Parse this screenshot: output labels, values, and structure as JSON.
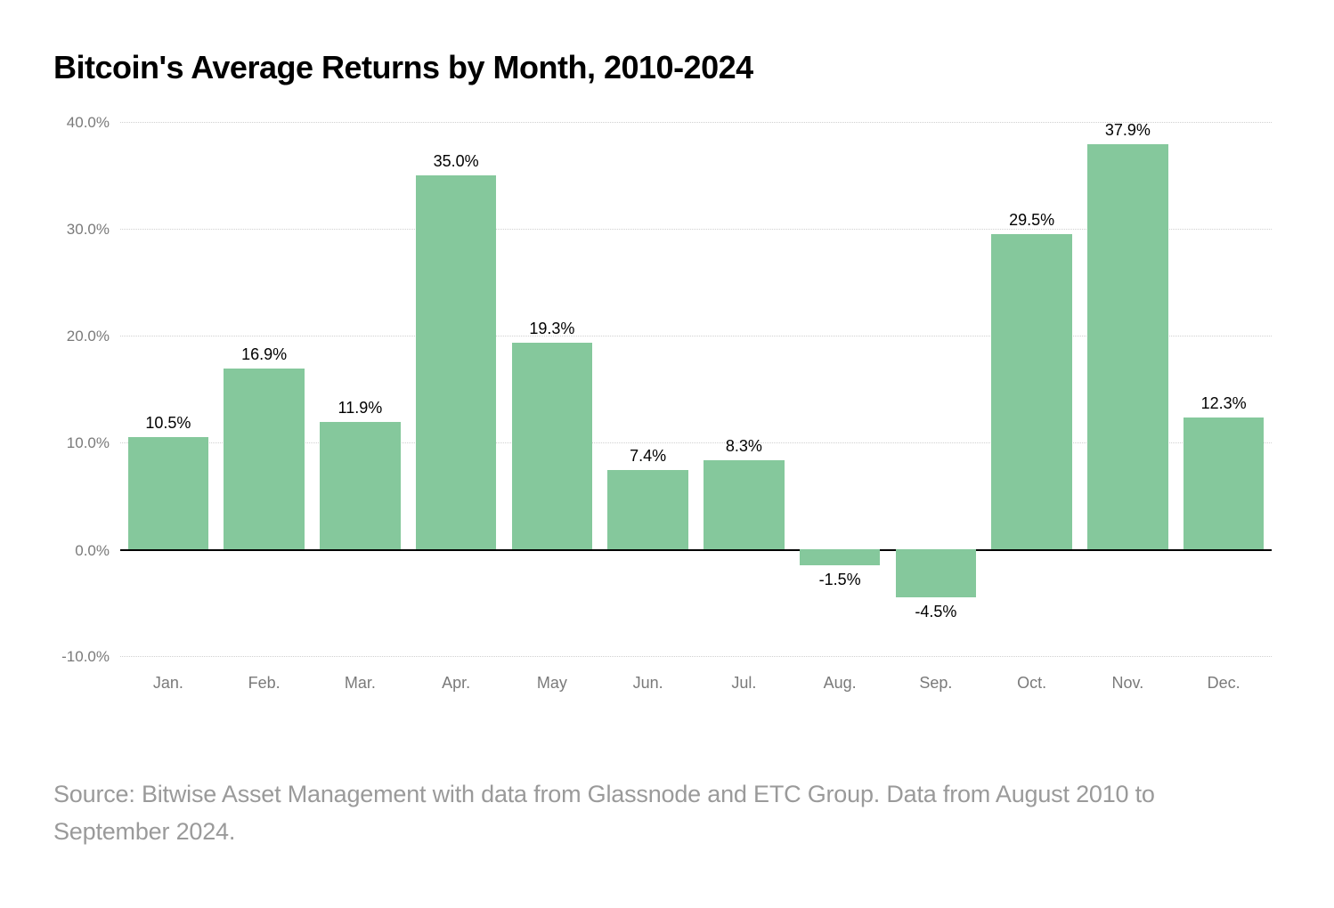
{
  "chart": {
    "type": "bar",
    "title": "Bitcoin's Average Returns by Month, 2010-2024",
    "title_fontsize": 36,
    "title_fontweight": 600,
    "title_color": "#000000",
    "categories": [
      "Jan.",
      "Feb.",
      "Mar.",
      "Apr.",
      "May",
      "Jun.",
      "Jul.",
      "Aug.",
      "Sep.",
      "Oct.",
      "Nov.",
      "Dec."
    ],
    "values": [
      10.5,
      16.9,
      11.9,
      35.0,
      19.3,
      7.4,
      8.3,
      -1.5,
      -4.5,
      29.5,
      37.9,
      12.3
    ],
    "value_labels": [
      "10.5%",
      "16.9%",
      "11.9%",
      "35.0%",
      "19.3%",
      "7.4%",
      "8.3%",
      "-1.5%",
      "-4.5%",
      "29.5%",
      "37.9%",
      "12.3%"
    ],
    "bar_color": "#85c89c",
    "ylim": [
      -10,
      40
    ],
    "ytick_step": 10,
    "ytick_labels": [
      "-10.0%",
      "0.0%",
      "10.0%",
      "20.0%",
      "30.0%",
      "40.0%"
    ],
    "ytick_values": [
      -10,
      0,
      10,
      20,
      30,
      40
    ],
    "grid_color": "#d0d0d0",
    "zero_line_color": "#000000",
    "background_color": "#ffffff",
    "axis_label_color": "#7a7a7a",
    "axis_label_fontsize": 17,
    "value_label_fontsize": 18,
    "value_label_color": "#000000",
    "bar_width_ratio": 0.84
  },
  "source": "Source: Bitwise Asset Management with data from Glassnode and ETC Group. Data from August 2010 to September 2024.",
  "source_fontsize": 27,
  "source_color": "#9a9a9a"
}
